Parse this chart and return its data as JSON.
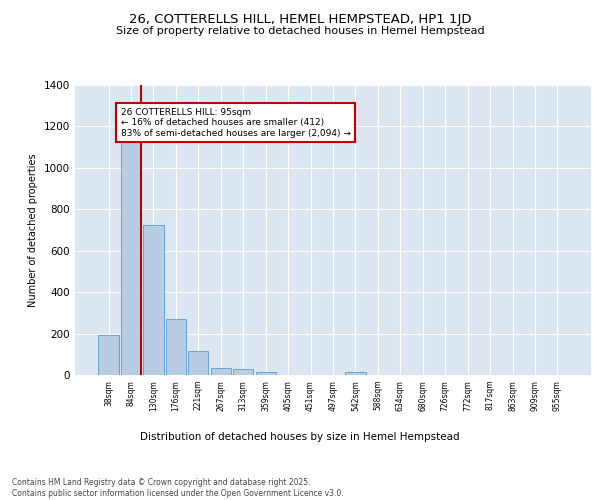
{
  "title": "26, COTTERELLS HILL, HEMEL HEMPSTEAD, HP1 1JD",
  "subtitle": "Size of property relative to detached houses in Hemel Hempstead",
  "xlabel": "Distribution of detached houses by size in Hemel Hempstead",
  "ylabel": "Number of detached properties",
  "categories": [
    "38sqm",
    "84sqm",
    "130sqm",
    "176sqm",
    "221sqm",
    "267sqm",
    "313sqm",
    "359sqm",
    "405sqm",
    "451sqm",
    "497sqm",
    "542sqm",
    "588sqm",
    "634sqm",
    "680sqm",
    "726sqm",
    "772sqm",
    "817sqm",
    "863sqm",
    "909sqm",
    "955sqm"
  ],
  "values": [
    195,
    1155,
    725,
    270,
    115,
    35,
    30,
    15,
    0,
    0,
    0,
    15,
    0,
    0,
    0,
    0,
    0,
    0,
    0,
    0,
    0
  ],
  "bar_color": "#b8cce4",
  "bar_edge_color": "#5b9bd5",
  "highlight_line_color": "#c00000",
  "annotation_text": "26 COTTERELLS HILL: 95sqm\n← 16% of detached houses are smaller (412)\n83% of semi-detached houses are larger (2,094) →",
  "annotation_box_color": "#c00000",
  "ylim": [
    0,
    1400
  ],
  "yticks": [
    0,
    200,
    400,
    600,
    800,
    1000,
    1200,
    1400
  ],
  "background_color": "#dce6f1",
  "grid_color": "#ffffff",
  "fig_background": "#ffffff",
  "footer": "Contains HM Land Registry data © Crown copyright and database right 2025.\nContains public sector information licensed under the Open Government Licence v3.0."
}
